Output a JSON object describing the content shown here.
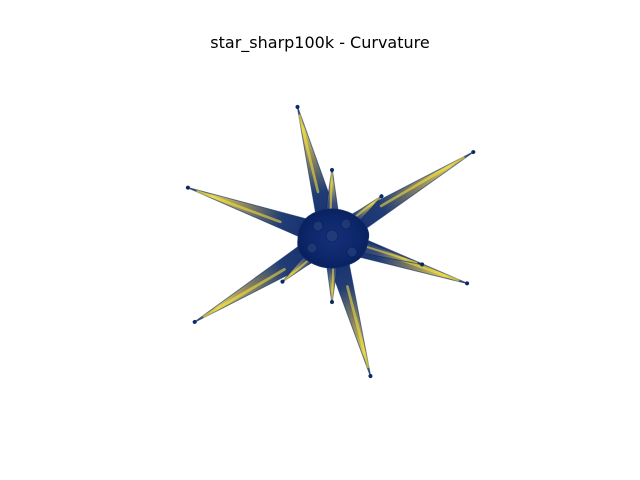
{
  "figure": {
    "title": "star_sharp100k - Curvature"
  },
  "render": {
    "object": "star-shaped mesh with sharp spikes",
    "colormap": "cividis",
    "colors": {
      "low": "#00224e",
      "mid": "#7c7b78",
      "high": "#fee838",
      "outline": "#0b2a66"
    }
  }
}
